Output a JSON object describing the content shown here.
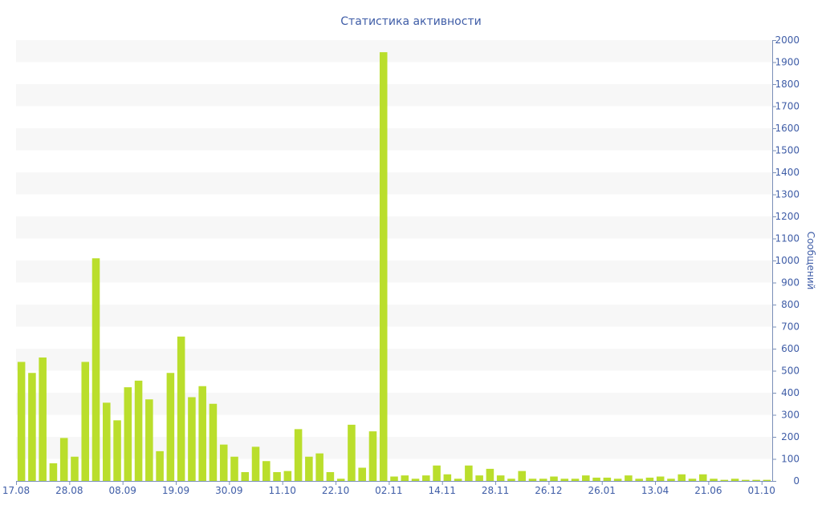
{
  "chart_data": {
    "type": "bar",
    "title": "Статистика активности",
    "ylabel": "Сообщений",
    "xlabel": "",
    "ylim": [
      0,
      2000
    ],
    "y_ticks": [
      0,
      100,
      200,
      300,
      400,
      500,
      600,
      700,
      800,
      900,
      1000,
      1100,
      1200,
      1300,
      1400,
      1500,
      1600,
      1700,
      1800,
      1900,
      2000
    ],
    "y_axis_side": "right",
    "grid": "alternating-horizontal-bands",
    "legend": "none",
    "bar_color": "#bade2c",
    "text_color": "#3f5da7",
    "x_tick_labels": [
      {
        "index": 0,
        "label": "17.08"
      },
      {
        "index": 5,
        "label": "28.08"
      },
      {
        "index": 10,
        "label": "08.09"
      },
      {
        "index": 15,
        "label": "19.09"
      },
      {
        "index": 20,
        "label": "30.09"
      },
      {
        "index": 25,
        "label": "11.10"
      },
      {
        "index": 30,
        "label": "22.10"
      },
      {
        "index": 35,
        "label": "02.11"
      },
      {
        "index": 40,
        "label": "14.11"
      },
      {
        "index": 45,
        "label": "28.11"
      },
      {
        "index": 50,
        "label": "26.12"
      },
      {
        "index": 55,
        "label": "26.01"
      },
      {
        "index": 60,
        "label": "13.04"
      },
      {
        "index": 65,
        "label": "21.06"
      },
      {
        "index": 70,
        "label": "01.10"
      }
    ],
    "values": [
      540,
      490,
      560,
      80,
      195,
      110,
      540,
      1010,
      355,
      275,
      425,
      455,
      370,
      135,
      490,
      655,
      380,
      430,
      350,
      165,
      110,
      40,
      155,
      90,
      40,
      45,
      235,
      110,
      125,
      40,
      10,
      255,
      60,
      225,
      1945,
      20,
      25,
      10,
      25,
      70,
      30,
      10,
      70,
      25,
      55,
      25,
      10,
      45,
      10,
      10,
      20,
      10,
      10,
      25,
      15,
      15,
      10,
      25,
      10,
      15,
      20,
      10,
      30,
      10,
      30,
      10,
      5,
      10,
      5,
      5,
      5
    ]
  }
}
